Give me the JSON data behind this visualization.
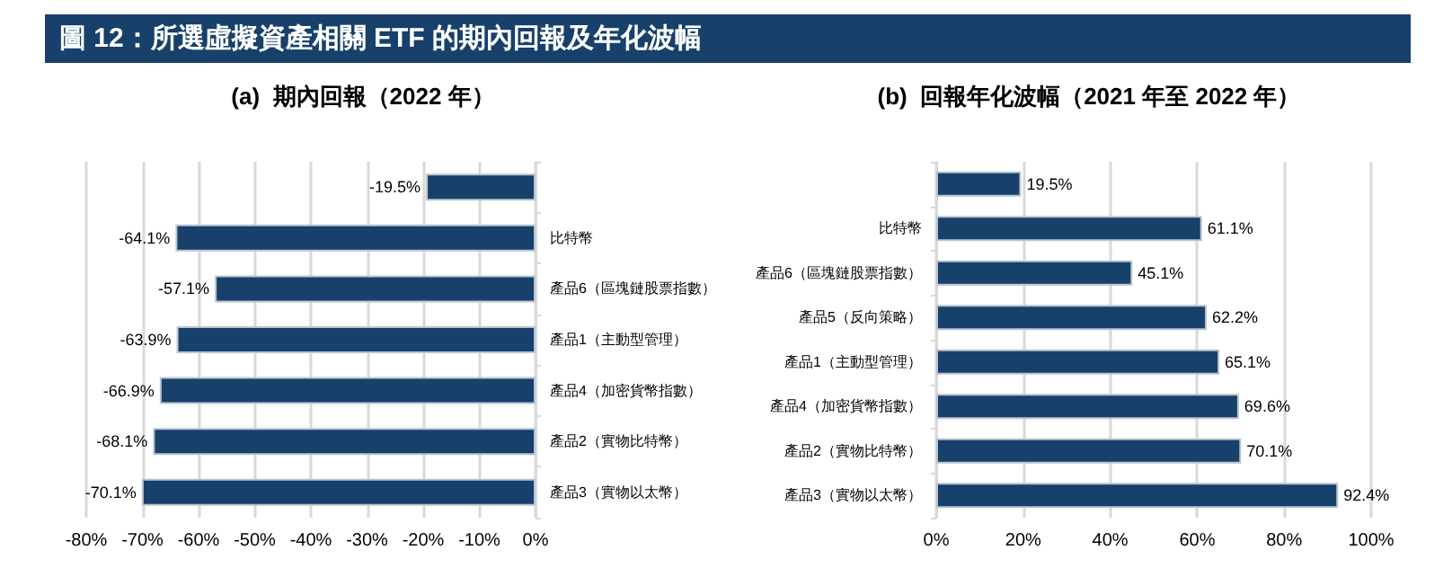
{
  "chart_data": [
    {
      "type": "other",
      "title": "圖 12：所選虛擬資產相關 ETF 的期內回報及年化波幅",
      "color": "#17406a"
    },
    {
      "type": "bar",
      "orientation": "horizontal",
      "title": "(a)  期內回報（2022 年）",
      "categories": [
        null,
        "比特幣",
        "產品6（區塊鏈股票指數）",
        "產品1（主動型管理）",
        "產品4（加密貨幣指數）",
        "產品2（實物比特幣）",
        "產品3（實物以太幣）"
      ],
      "values": [
        -19.5,
        -64.1,
        -57.1,
        -63.9,
        -66.9,
        -68.1,
        -70.1
      ],
      "value_labels": [
        "-19.5%",
        "-64.1%",
        "-57.1%",
        "-63.9%",
        "-66.9%",
        "-68.1%",
        "-70.1%"
      ],
      "color": "#17406a",
      "xlim": [
        -80,
        0
      ],
      "xticks": [
        {
          "value": -80,
          "label": "-80%"
        },
        {
          "value": -70,
          "label": "-70%"
        },
        {
          "value": -60,
          "label": "-60%"
        },
        {
          "value": -50,
          "label": "-50%"
        },
        {
          "value": -40,
          "label": "-40%"
        },
        {
          "value": -30,
          "label": "-30%"
        },
        {
          "value": -20,
          "label": "-20%"
        },
        {
          "value": -10,
          "label": "-10%"
        },
        {
          "value": 0,
          "label": "0%"
        }
      ],
      "grid": "x"
    },
    {
      "type": "bar",
      "orientation": "horizontal",
      "title": "(b)  回報年化波幅（2021 年至 2022 年）",
      "categories": [
        null,
        "比特幣",
        "產品6（區塊鏈股票指數）",
        "產品5（反向策略）",
        "產品1（主動型管理）",
        "產品4（加密貨幣指數）",
        "產品2（實物比特幣）",
        "產品3（實物以太幣）"
      ],
      "values": [
        19.5,
        61.1,
        45.1,
        62.2,
        65.1,
        69.6,
        70.1,
        92.4
      ],
      "value_labels": [
        "19.5%",
        "61.1%",
        "45.1%",
        "62.2%",
        "65.1%",
        "69.6%",
        "70.1%",
        "92.4%"
      ],
      "color": "#17406a",
      "xlim": [
        0,
        100
      ],
      "xticks": [
        {
          "value": 0,
          "label": "0%"
        },
        {
          "value": 20,
          "label": "20%"
        },
        {
          "value": 40,
          "label": "40%"
        },
        {
          "value": 60,
          "label": "60%"
        },
        {
          "value": 80,
          "label": "80%"
        },
        {
          "value": 100,
          "label": "100%"
        }
      ],
      "grid": "x"
    }
  ]
}
